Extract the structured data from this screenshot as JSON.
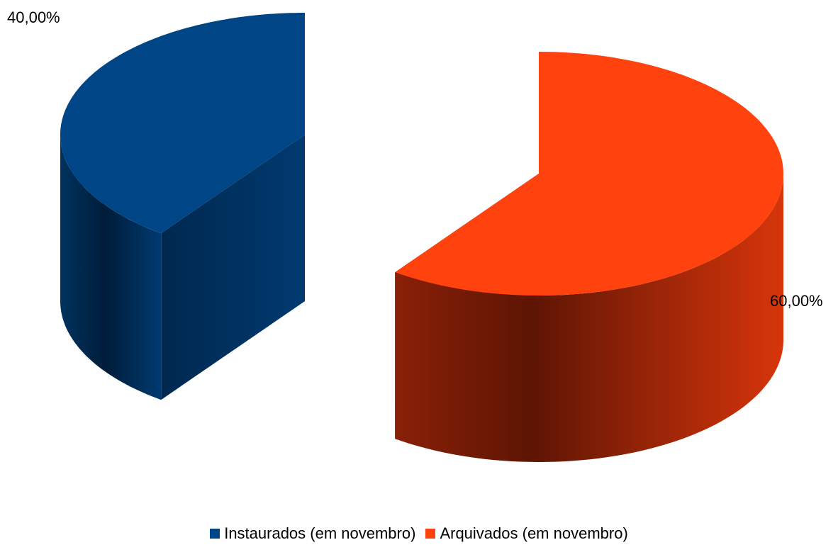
{
  "chart_data": {
    "type": "pie",
    "style": "3d-exploded",
    "categories": [
      "Instaurados (em novembro)",
      "Arquivados (em novembro)"
    ],
    "values": [
      40,
      60
    ],
    "value_labels": [
      "40,00%",
      "60,00%"
    ],
    "colors": [
      "#004586",
      "#ff420e"
    ],
    "legend_position": "bottom",
    "title": ""
  }
}
